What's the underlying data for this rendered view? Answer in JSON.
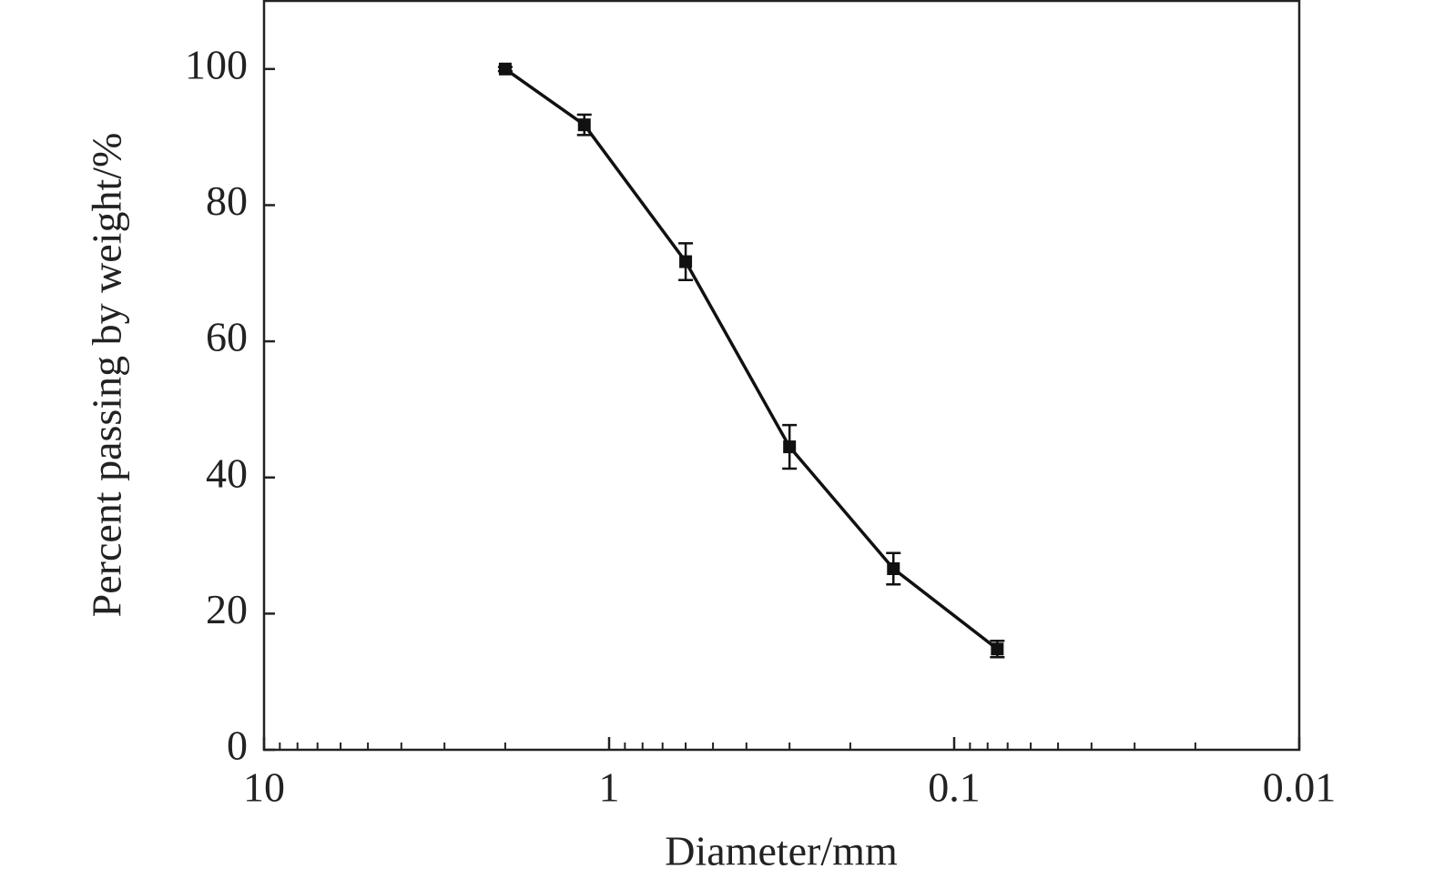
{
  "chart_data": {
    "type": "line",
    "xlabel": "Diameter/mm",
    "ylabel": "Percent passing by weight/%",
    "x": [
      2,
      1.18,
      0.6,
      0.3,
      0.15,
      0.075
    ],
    "series": [
      {
        "color": "#111111",
        "values": [
          100,
          91.8,
          71.7,
          44.5,
          26.6,
          14.8
        ],
        "errors": [
          0.3,
          1.5,
          2.7,
          3.2,
          2.3,
          1.2
        ]
      }
    ],
    "xscale": "log",
    "xlim": [
      10,
      0.01
    ],
    "xticks": [
      10,
      1,
      0.1,
      0.01
    ],
    "xminorticks": [
      9,
      8,
      7,
      6,
      5,
      4,
      3,
      2,
      0.9,
      0.8,
      0.7,
      0.6,
      0.5,
      0.4,
      0.3,
      0.2,
      0.09,
      0.08,
      0.07,
      0.06,
      0.05,
      0.04,
      0.03,
      0.02
    ],
    "ylim": [
      0,
      110
    ],
    "yticks": [
      0,
      20,
      40,
      60,
      80,
      100
    ],
    "grid": false
  }
}
